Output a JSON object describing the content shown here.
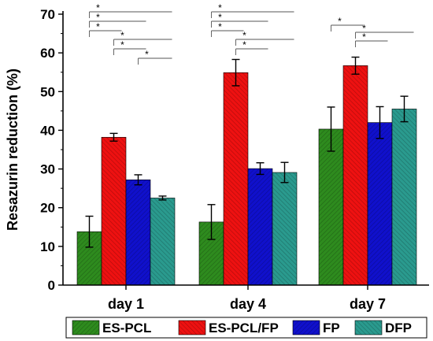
{
  "chart_data": {
    "type": "bar",
    "ylabel": "Resazurin reduction (%)",
    "xlabel": "",
    "ylim": [
      0,
      70
    ],
    "yticks": [
      0,
      10,
      20,
      30,
      40,
      50,
      60,
      70
    ],
    "categories": [
      "day 1",
      "day 4",
      "day 7"
    ],
    "series": [
      {
        "name": "ES-PCL",
        "color": "#2e8b1e",
        "values": [
          13.8,
          16.3,
          40.3
        ],
        "errors": [
          4.0,
          4.5,
          5.7
        ]
      },
      {
        "name": "ES-PCL/FP",
        "color": "#ee1111",
        "values": [
          38.2,
          54.9,
          56.7
        ],
        "errors": [
          1.0,
          3.4,
          2.2
        ]
      },
      {
        "name": "FP",
        "color": "#1010cc",
        "values": [
          27.2,
          30.1,
          42.0
        ],
        "errors": [
          1.3,
          1.5,
          4.1
        ]
      },
      {
        "name": "DFP",
        "color": "#2a9a8e",
        "values": [
          22.5,
          29.1,
          45.5
        ],
        "errors": [
          0.5,
          2.6,
          3.3
        ]
      }
    ],
    "significance_marker": "*",
    "significance": [
      {
        "category": 0,
        "from": 0,
        "to": 3
      },
      {
        "category": 0,
        "from": 0,
        "to": 2
      },
      {
        "category": 0,
        "from": 0,
        "to": 1
      },
      {
        "category": 0,
        "from": 1,
        "to": 3
      },
      {
        "category": 0,
        "from": 1,
        "to": 2
      },
      {
        "category": 0,
        "from": 2,
        "to": 3
      },
      {
        "category": 1,
        "from": 0,
        "to": 3
      },
      {
        "category": 1,
        "from": 0,
        "to": 2
      },
      {
        "category": 1,
        "from": 0,
        "to": 1
      },
      {
        "category": 1,
        "from": 1,
        "to": 3
      },
      {
        "category": 1,
        "from": 1,
        "to": 2
      },
      {
        "category": 2,
        "from": 0,
        "to": 1
      },
      {
        "category": 2,
        "from": 1,
        "to": 3
      },
      {
        "category": 2,
        "from": 1,
        "to": 2
      }
    ],
    "legend_position": "bottom"
  }
}
